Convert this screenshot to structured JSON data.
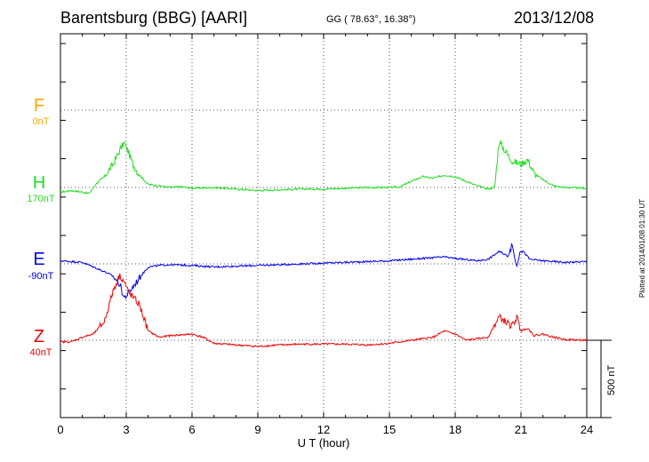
{
  "header": {
    "station": "Barentsburg (BBG)  [AARI]",
    "coords": "GG ( 78.63°,  16.38°)",
    "date": "2013/12/08"
  },
  "components": [
    {
      "key": "F",
      "letter": "F",
      "baseline": "0nT",
      "color": "#ffa500"
    },
    {
      "key": "H",
      "letter": "H",
      "baseline": "170nT",
      "color": "#22dd22"
    },
    {
      "key": "E",
      "letter": "E",
      "baseline": "-90nT",
      "color": "#0000ee"
    },
    {
      "key": "Z",
      "letter": "Z",
      "baseline": "40nT",
      "color": "#ee0000"
    }
  ],
  "plotted_note": "Plotted at 2014/01/08 01:30 UT",
  "scale_label": "500 nT",
  "chart_data": {
    "type": "line",
    "title": "Barentsburg (BBG)  [AARI]",
    "xlabel": "U T (hour)",
    "x_ticks": [
      "0",
      "3",
      "6",
      "9",
      "12",
      "15",
      "18",
      "21",
      "24"
    ],
    "xlim": [
      0,
      24
    ],
    "grid": true,
    "scale_bar_nT": 500,
    "series": [
      {
        "name": "H",
        "color": "#22dd22",
        "points": [
          [
            0,
            -30
          ],
          [
            0.5,
            -20
          ],
          [
            1.0,
            -30
          ],
          [
            1.3,
            -40
          ],
          [
            1.6,
            20
          ],
          [
            2.0,
            70
          ],
          [
            2.4,
            150
          ],
          [
            2.7,
            240
          ],
          [
            2.9,
            290
          ],
          [
            3.1,
            230
          ],
          [
            3.3,
            150
          ],
          [
            3.6,
            80
          ],
          [
            4.0,
            20
          ],
          [
            4.5,
            10
          ],
          [
            5.0,
            0
          ],
          [
            5.5,
            5
          ],
          [
            6.0,
            -5
          ],
          [
            7.0,
            0
          ],
          [
            8.0,
            -10
          ],
          [
            9.0,
            -20
          ],
          [
            10.0,
            -15
          ],
          [
            11.0,
            -10
          ],
          [
            12.0,
            -10
          ],
          [
            13.0,
            -5
          ],
          [
            14.0,
            0
          ],
          [
            15.0,
            0
          ],
          [
            15.5,
            5
          ],
          [
            16.0,
            40
          ],
          [
            16.5,
            70
          ],
          [
            17.0,
            60
          ],
          [
            17.5,
            80
          ],
          [
            18.0,
            70
          ],
          [
            18.5,
            40
          ],
          [
            19.0,
            10
          ],
          [
            19.5,
            -10
          ],
          [
            19.8,
            0
          ],
          [
            20.0,
            300
          ],
          [
            20.3,
            230
          ],
          [
            20.6,
            170
          ],
          [
            21.0,
            150
          ],
          [
            21.3,
            180
          ],
          [
            21.6,
            90
          ],
          [
            22.0,
            50
          ],
          [
            22.5,
            10
          ],
          [
            23.0,
            0
          ],
          [
            24.0,
            -5
          ]
        ]
      },
      {
        "name": "E",
        "color": "#0000ee",
        "points": [
          [
            0,
            20
          ],
          [
            0.5,
            15
          ],
          [
            1.0,
            10
          ],
          [
            1.5,
            -20
          ],
          [
            2.0,
            -50
          ],
          [
            2.4,
            -80
          ],
          [
            2.7,
            -130
          ],
          [
            2.9,
            -220
          ],
          [
            3.1,
            -190
          ],
          [
            3.3,
            -150
          ],
          [
            3.6,
            -90
          ],
          [
            4.0,
            -20
          ],
          [
            4.5,
            -10
          ],
          [
            5.0,
            -5
          ],
          [
            6.0,
            -10
          ],
          [
            7.0,
            -20
          ],
          [
            8.0,
            -15
          ],
          [
            9.0,
            -10
          ],
          [
            10.0,
            -5
          ],
          [
            11.0,
            0
          ],
          [
            12.0,
            5
          ],
          [
            13.0,
            10
          ],
          [
            14.0,
            15
          ],
          [
            15.0,
            20
          ],
          [
            16.0,
            30
          ],
          [
            17.0,
            40
          ],
          [
            17.5,
            45
          ],
          [
            18.0,
            35
          ],
          [
            19.0,
            20
          ],
          [
            19.5,
            30
          ],
          [
            20.0,
            80
          ],
          [
            20.4,
            50
          ],
          [
            20.6,
            120
          ],
          [
            20.8,
            -20
          ],
          [
            21.0,
            100
          ],
          [
            21.4,
            30
          ],
          [
            22.0,
            20
          ],
          [
            23.0,
            10
          ],
          [
            24.0,
            15
          ]
        ]
      },
      {
        "name": "Z",
        "color": "#ee0000",
        "points": [
          [
            0,
            -10
          ],
          [
            0.5,
            -10
          ],
          [
            1.0,
            20
          ],
          [
            1.5,
            40
          ],
          [
            2.0,
            120
          ],
          [
            2.4,
            320
          ],
          [
            2.7,
            420
          ],
          [
            2.9,
            380
          ],
          [
            3.1,
            310
          ],
          [
            3.3,
            280
          ],
          [
            3.6,
            230
          ],
          [
            4.0,
            60
          ],
          [
            4.5,
            20
          ],
          [
            5.0,
            30
          ],
          [
            6.0,
            40
          ],
          [
            6.5,
            20
          ],
          [
            7.0,
            -20
          ],
          [
            8.0,
            -30
          ],
          [
            9.0,
            -40
          ],
          [
            10.0,
            -30
          ],
          [
            11.0,
            -25
          ],
          [
            12.0,
            -25
          ],
          [
            13.0,
            -25
          ],
          [
            14.0,
            -30
          ],
          [
            15.0,
            -20
          ],
          [
            16.0,
            0
          ],
          [
            17.0,
            20
          ],
          [
            17.5,
            60
          ],
          [
            18.0,
            40
          ],
          [
            18.5,
            0
          ],
          [
            19.0,
            10
          ],
          [
            19.5,
            20
          ],
          [
            20.0,
            150
          ],
          [
            20.3,
            120
          ],
          [
            20.6,
            90
          ],
          [
            20.8,
            150
          ],
          [
            21.0,
            60
          ],
          [
            21.3,
            80
          ],
          [
            21.6,
            30
          ],
          [
            22.0,
            40
          ],
          [
            22.5,
            20
          ],
          [
            23.0,
            5
          ],
          [
            24.0,
            0
          ]
        ]
      }
    ]
  }
}
